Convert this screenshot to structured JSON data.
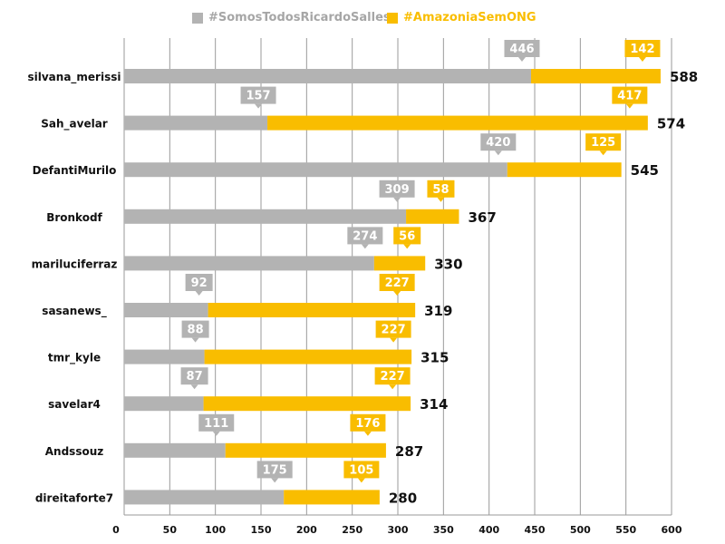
{
  "chart_data": {
    "type": "bar",
    "stacked": true,
    "orientation": "horizontal",
    "categories": [
      "silvana_merissi",
      "Sah_avelar",
      "DefantiMurilo",
      "Bronkodf",
      "mariluciferraz",
      "sasanews_",
      "tmr_kyle",
      "savelar4",
      "Andssouz",
      "direitaforte7"
    ],
    "series": [
      {
        "name": "#SomosTodosRicardoSalles",
        "color": "#b3b3b3",
        "values": [
          446,
          157,
          420,
          309,
          274,
          92,
          88,
          87,
          111,
          175
        ]
      },
      {
        "name": "#AmazoniaSemONG",
        "color": "#f9bd00",
        "values": [
          142,
          417,
          125,
          58,
          56,
          227,
          227,
          227,
          176,
          105
        ]
      }
    ],
    "totals": [
      588,
      574,
      545,
      367,
      330,
      319,
      315,
      314,
      287,
      280
    ],
    "xlim": [
      0,
      600
    ],
    "xticks": [
      0,
      50,
      100,
      150,
      200,
      250,
      300,
      350,
      400,
      450,
      500,
      550,
      600
    ],
    "grid": true,
    "legend_position": "top-center",
    "title": "",
    "xlabel": "",
    "ylabel": ""
  }
}
